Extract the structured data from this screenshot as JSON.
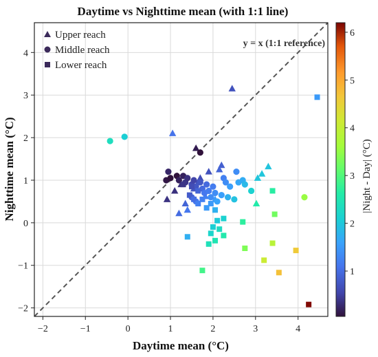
{
  "chart_data": {
    "type": "scatter",
    "title": "Daytime vs Nighttime mean (with 1:1 line)",
    "xlabel": "Daytime mean (°C)",
    "ylabel": "Nighttime mean (°C)",
    "xlim": [
      -2.2,
      4.7
    ],
    "ylim": [
      -2.2,
      4.7
    ],
    "xticks": [
      "−2",
      "−1",
      "0",
      "1",
      "2",
      "3",
      "4"
    ],
    "yticks": [
      "−2",
      "−1",
      "0",
      "1",
      "2",
      "3",
      "4"
    ],
    "xtick_values": [
      -2,
      -1,
      0,
      1,
      2,
      3,
      4
    ],
    "ytick_values": [
      -2,
      -1,
      0,
      1,
      2,
      3,
      4
    ],
    "grid": true,
    "reference_line": {
      "label": "y = x (1:1 reference)",
      "style": "dashed",
      "color": "#555555"
    },
    "legend": {
      "placement": "top-left",
      "marker_color": "#3b2a5a"
    },
    "colorbar": {
      "label": "|Night - Day| (°C)",
      "range": [
        0.05,
        6.2
      ],
      "ticks": [
        "1",
        "2",
        "3",
        "4",
        "5",
        "6"
      ],
      "tick_values": [
        1,
        2,
        3,
        4,
        5,
        6
      ],
      "colormap": "turbo"
    },
    "series": [
      {
        "name": "Upper reach",
        "marker": "triangle",
        "points": [
          {
            "x": 2.45,
            "y": 3.15
          },
          {
            "x": 1.05,
            "y": 2.1
          },
          {
            "x": 1.6,
            "y": 1.75
          },
          {
            "x": 0.92,
            "y": 0.55
          },
          {
            "x": 1.1,
            "y": 0.75
          },
          {
            "x": 1.25,
            "y": 0.9
          },
          {
            "x": 1.35,
            "y": 0.45
          },
          {
            "x": 1.4,
            "y": 0.3
          },
          {
            "x": 1.2,
            "y": 0.22
          },
          {
            "x": 1.55,
            "y": 0.8
          },
          {
            "x": 1.7,
            "y": 1.05
          },
          {
            "x": 1.9,
            "y": 1.2
          },
          {
            "x": 2.2,
            "y": 1.35
          },
          {
            "x": 2.15,
            "y": 1.25
          },
          {
            "x": 2.05,
            "y": 0.55
          },
          {
            "x": 1.82,
            "y": 0.62
          },
          {
            "x": 3.3,
            "y": 1.32
          },
          {
            "x": 3.15,
            "y": 1.15
          },
          {
            "x": 3.05,
            "y": 1.05
          },
          {
            "x": 3.02,
            "y": 0.45
          },
          {
            "x": 1.65,
            "y": 0.95
          }
        ]
      },
      {
        "name": "Middle reach",
        "marker": "circle",
        "points": [
          {
            "x": -0.42,
            "y": 1.92
          },
          {
            "x": -0.08,
            "y": 2.02
          },
          {
            "x": 1.7,
            "y": 1.65
          },
          {
            "x": 0.95,
            "y": 1.2
          },
          {
            "x": 0.9,
            "y": 1.0
          },
          {
            "x": 1.0,
            "y": 1.05
          },
          {
            "x": 1.15,
            "y": 1.1
          },
          {
            "x": 1.2,
            "y": 1.0
          },
          {
            "x": 1.3,
            "y": 1.1
          },
          {
            "x": 1.35,
            "y": 0.95
          },
          {
            "x": 1.4,
            "y": 1.05
          },
          {
            "x": 1.5,
            "y": 0.9
          },
          {
            "x": 1.55,
            "y": 1.0
          },
          {
            "x": 1.6,
            "y": 0.85
          },
          {
            "x": 1.7,
            "y": 0.95
          },
          {
            "x": 1.75,
            "y": 0.8
          },
          {
            "x": 1.8,
            "y": 0.7
          },
          {
            "x": 1.85,
            "y": 0.9
          },
          {
            "x": 1.9,
            "y": 0.75
          },
          {
            "x": 1.95,
            "y": 0.6
          },
          {
            "x": 2.0,
            "y": 0.85
          },
          {
            "x": 2.05,
            "y": 0.7
          },
          {
            "x": 2.1,
            "y": 0.5
          },
          {
            "x": 2.2,
            "y": 0.65
          },
          {
            "x": 2.25,
            "y": 1.05
          },
          {
            "x": 2.3,
            "y": 0.95
          },
          {
            "x": 2.35,
            "y": 0.6
          },
          {
            "x": 2.4,
            "y": 0.85
          },
          {
            "x": 2.5,
            "y": 0.55
          },
          {
            "x": 2.55,
            "y": 1.2
          },
          {
            "x": 2.6,
            "y": 0.95
          },
          {
            "x": 2.7,
            "y": 1.0
          },
          {
            "x": 2.75,
            "y": 0.9
          },
          {
            "x": 2.9,
            "y": 0.75
          },
          {
            "x": 1.5,
            "y": 0.6
          },
          {
            "x": 1.6,
            "y": 0.5
          },
          {
            "x": 4.15,
            "y": 0.6
          }
        ]
      },
      {
        "name": "Lower reach",
        "marker": "square",
        "points": [
          {
            "x": 4.45,
            "y": 2.95
          },
          {
            "x": 1.3,
            "y": 0.9
          },
          {
            "x": 1.45,
            "y": 0.65
          },
          {
            "x": 1.55,
            "y": 0.55
          },
          {
            "x": 1.65,
            "y": 0.45
          },
          {
            "x": 1.75,
            "y": 0.55
          },
          {
            "x": 1.85,
            "y": 0.35
          },
          {
            "x": 1.95,
            "y": 0.45
          },
          {
            "x": 2.05,
            "y": 0.3
          },
          {
            "x": 2.1,
            "y": 0.05
          },
          {
            "x": 2.25,
            "y": 0.1
          },
          {
            "x": 1.4,
            "y": -0.33
          },
          {
            "x": 2.0,
            "y": -0.1
          },
          {
            "x": 1.95,
            "y": -0.25
          },
          {
            "x": 2.15,
            "y": -0.15
          },
          {
            "x": 2.25,
            "y": -0.3
          },
          {
            "x": 1.9,
            "y": -0.5
          },
          {
            "x": 2.05,
            "y": -0.42
          },
          {
            "x": 2.7,
            "y": 0.02
          },
          {
            "x": 2.75,
            "y": -0.6
          },
          {
            "x": 3.4,
            "y": 0.75
          },
          {
            "x": 3.45,
            "y": 0.2
          },
          {
            "x": 3.4,
            "y": -0.48
          },
          {
            "x": 3.2,
            "y": -0.88
          },
          {
            "x": 3.55,
            "y": -1.17
          },
          {
            "x": 3.95,
            "y": -0.65
          },
          {
            "x": 4.25,
            "y": -1.92
          },
          {
            "x": 1.75,
            "y": -1.12
          },
          {
            "x": 1.65,
            "y": 0.75
          },
          {
            "x": 1.5,
            "y": 0.85
          }
        ]
      }
    ]
  }
}
